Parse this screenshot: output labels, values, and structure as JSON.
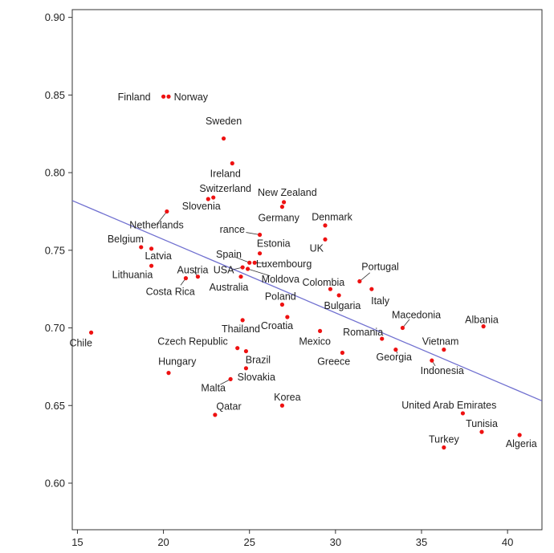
{
  "chart_data": {
    "type": "scatter",
    "title": "",
    "xlabel": "",
    "ylabel": "",
    "xlim": [
      14.7,
      42
    ],
    "ylim": [
      0.57,
      0.905
    ],
    "x_ticks": [
      15,
      20,
      25,
      30,
      35,
      40
    ],
    "y_ticks": [
      0.6,
      0.65,
      0.7,
      0.75,
      0.8,
      0.85,
      0.9
    ],
    "x_tick_labels": [
      "15",
      "20",
      "25",
      "30",
      "35",
      "40"
    ],
    "y_tick_labels": [
      "0.60",
      "0.65",
      "0.70",
      "0.75",
      "0.80",
      "0.85",
      "0.90"
    ],
    "grid": false,
    "point_color": "#ee1111",
    "trend_color": "#7070d0",
    "trendline": {
      "x": [
        14.7,
        42
      ],
      "y": [
        0.782,
        0.653
      ]
    },
    "points": [
      {
        "name": "Finland",
        "x": 20.0,
        "y": 0.849
      },
      {
        "name": "Norway",
        "x": 20.3,
        "y": 0.849
      },
      {
        "name": "Sweden",
        "x": 23.5,
        "y": 0.822
      },
      {
        "name": "Ireland",
        "x": 24.0,
        "y": 0.806
      },
      {
        "name": "Switzerland",
        "x": 22.9,
        "y": 0.784
      },
      {
        "name": "Slovenia",
        "x": 22.6,
        "y": 0.783
      },
      {
        "name": "New Zealand",
        "x": 27.0,
        "y": 0.781
      },
      {
        "name": "Germany",
        "x": 26.9,
        "y": 0.778
      },
      {
        "name": "Netherlands",
        "x": 20.2,
        "y": 0.775
      },
      {
        "name": "Denmark",
        "x": 29.4,
        "y": 0.766
      },
      {
        "name": "France",
        "x": 25.6,
        "y": 0.76
      },
      {
        "name": "UK",
        "x": 29.4,
        "y": 0.757
      },
      {
        "name": "Belgium",
        "x": 18.7,
        "y": 0.752
      },
      {
        "name": "Latvia",
        "x": 19.3,
        "y": 0.751
      },
      {
        "name": "Estonia",
        "x": 25.6,
        "y": 0.748
      },
      {
        "name": "Spain",
        "x": 25.0,
        "y": 0.742
      },
      {
        "name": "Luxembourg",
        "x": 25.3,
        "y": 0.742
      },
      {
        "name": "Lithuania",
        "x": 19.3,
        "y": 0.74
      },
      {
        "name": "USA",
        "x": 24.6,
        "y": 0.739
      },
      {
        "name": "Moldova",
        "x": 24.9,
        "y": 0.738
      },
      {
        "name": "Austria",
        "x": 22.0,
        "y": 0.733
      },
      {
        "name": "Costa Rica",
        "x": 21.3,
        "y": 0.732
      },
      {
        "name": "Australia",
        "x": 24.5,
        "y": 0.733
      },
      {
        "name": "Portugal",
        "x": 31.4,
        "y": 0.73
      },
      {
        "name": "Colombia",
        "x": 29.7,
        "y": 0.725
      },
      {
        "name": "Italy",
        "x": 32.1,
        "y": 0.725
      },
      {
        "name": "Bulgaria",
        "x": 30.2,
        "y": 0.721
      },
      {
        "name": "Poland",
        "x": 26.9,
        "y": 0.715
      },
      {
        "name": "Croatia",
        "x": 27.2,
        "y": 0.707
      },
      {
        "name": "Thailand",
        "x": 24.6,
        "y": 0.705
      },
      {
        "name": "Macedonia",
        "x": 33.9,
        "y": 0.7
      },
      {
        "name": "Albania",
        "x": 38.6,
        "y": 0.701
      },
      {
        "name": "Mexico",
        "x": 29.1,
        "y": 0.698
      },
      {
        "name": "Chile",
        "x": 15.8,
        "y": 0.697
      },
      {
        "name": "Romania",
        "x": 32.7,
        "y": 0.693
      },
      {
        "name": "Vietnam",
        "x": 36.3,
        "y": 0.686
      },
      {
        "name": "Czech Republic",
        "x": 24.3,
        "y": 0.687
      },
      {
        "name": "Brazil",
        "x": 24.8,
        "y": 0.685
      },
      {
        "name": "Georgia",
        "x": 33.5,
        "y": 0.686
      },
      {
        "name": "Greece",
        "x": 30.4,
        "y": 0.684
      },
      {
        "name": "Indonesia",
        "x": 35.6,
        "y": 0.679
      },
      {
        "name": "Hungary",
        "x": 20.3,
        "y": 0.671
      },
      {
        "name": "Slovakia",
        "x": 24.8,
        "y": 0.674
      },
      {
        "name": "Malta",
        "x": 23.9,
        "y": 0.667
      },
      {
        "name": "Korea",
        "x": 26.9,
        "y": 0.65
      },
      {
        "name": "United Arab Emirates",
        "x": 37.4,
        "y": 0.645
      },
      {
        "name": "Qatar",
        "x": 23.0,
        "y": 0.644
      },
      {
        "name": "Tunisia",
        "x": 38.5,
        "y": 0.633
      },
      {
        "name": "Algeria",
        "x": 40.7,
        "y": 0.631
      },
      {
        "name": "Turkey",
        "x": 36.3,
        "y": 0.623
      }
    ],
    "point_labels": [
      {
        "text": "Finland",
        "x": 18.3,
        "y": 0.849
      },
      {
        "text": "Norway",
        "x": 21.6,
        "y": 0.849
      },
      {
        "text": "Sweden",
        "x": 23.5,
        "y": 0.8335
      },
      {
        "text": "Ireland",
        "x": 23.6,
        "y": 0.7995
      },
      {
        "text": "Switzerland",
        "x": 23.6,
        "y": 0.79
      },
      {
        "text": "Slovenia",
        "x": 22.2,
        "y": 0.7785
      },
      {
        "text": "New Zealand",
        "x": 27.2,
        "y": 0.7875
      },
      {
        "text": "Germany",
        "x": 26.7,
        "y": 0.771
      },
      {
        "text": "Netherlands",
        "x": 19.6,
        "y": 0.7665
      },
      {
        "text": "Denmark",
        "x": 29.8,
        "y": 0.7715
      },
      {
        "text": "rance",
        "x": 24.0,
        "y": 0.7635
      },
      {
        "text": "Estonia",
        "x": 26.4,
        "y": 0.7545
      },
      {
        "text": "UK",
        "x": 28.9,
        "y": 0.7515
      },
      {
        "text": "Belgium",
        "x": 17.8,
        "y": 0.7575
      },
      {
        "text": "Latvia",
        "x": 19.7,
        "y": 0.7465
      },
      {
        "text": "Spain",
        "x": 23.8,
        "y": 0.7475
      },
      {
        "text": "Luxembourg",
        "x": 27.0,
        "y": 0.7415
      },
      {
        "text": "Lithuania",
        "x": 18.2,
        "y": 0.7345
      },
      {
        "text": "Austria",
        "x": 21.7,
        "y": 0.7375
      },
      {
        "text": "USA",
        "x": 23.5,
        "y": 0.7375
      },
      {
        "text": "Moldova",
        "x": 26.8,
        "y": 0.7315
      },
      {
        "text": "Costa Rica",
        "x": 20.4,
        "y": 0.7235
      },
      {
        "text": "Australia",
        "x": 23.8,
        "y": 0.7265
      },
      {
        "text": "Portugal",
        "x": 32.6,
        "y": 0.7395
      },
      {
        "text": "Colombia",
        "x": 29.3,
        "y": 0.7295
      },
      {
        "text": "Italy",
        "x": 32.6,
        "y": 0.7175
      },
      {
        "text": "Bulgaria",
        "x": 30.4,
        "y": 0.7145
      },
      {
        "text": "Poland",
        "x": 26.8,
        "y": 0.7205
      },
      {
        "text": "Croatia",
        "x": 26.6,
        "y": 0.7015
      },
      {
        "text": "Thailand",
        "x": 24.5,
        "y": 0.6995
      },
      {
        "text": "Macedonia",
        "x": 34.7,
        "y": 0.7085
      },
      {
        "text": "Albania",
        "x": 38.5,
        "y": 0.7055
      },
      {
        "text": "Mexico",
        "x": 28.8,
        "y": 0.6915
      },
      {
        "text": "Chile",
        "x": 15.2,
        "y": 0.6905
      },
      {
        "text": "Romania",
        "x": 31.6,
        "y": 0.6975
      },
      {
        "text": "Vietnam",
        "x": 36.1,
        "y": 0.6915
      },
      {
        "text": "Czech Republic",
        "x": 21.7,
        "y": 0.6915
      },
      {
        "text": "Brazil",
        "x": 25.5,
        "y": 0.6795
      },
      {
        "text": "Georgia",
        "x": 33.4,
        "y": 0.6815
      },
      {
        "text": "Greece",
        "x": 29.9,
        "y": 0.6785
      },
      {
        "text": "Indonesia",
        "x": 36.2,
        "y": 0.6725
      },
      {
        "text": "Hungary",
        "x": 20.8,
        "y": 0.6785
      },
      {
        "text": "Slovakia",
        "x": 25.4,
        "y": 0.6685
      },
      {
        "text": "Malta",
        "x": 22.9,
        "y": 0.6615
      },
      {
        "text": "Korea",
        "x": 27.2,
        "y": 0.6555
      },
      {
        "text": "United Arab Emirates",
        "x": 36.6,
        "y": 0.6505
      },
      {
        "text": "Qatar",
        "x": 23.8,
        "y": 0.6495
      },
      {
        "text": "Tunisia",
        "x": 38.5,
        "y": 0.6385
      },
      {
        "text": "Algeria",
        "x": 40.8,
        "y": 0.6255
      },
      {
        "text": "Turkey",
        "x": 36.3,
        "y": 0.6285
      }
    ]
  }
}
